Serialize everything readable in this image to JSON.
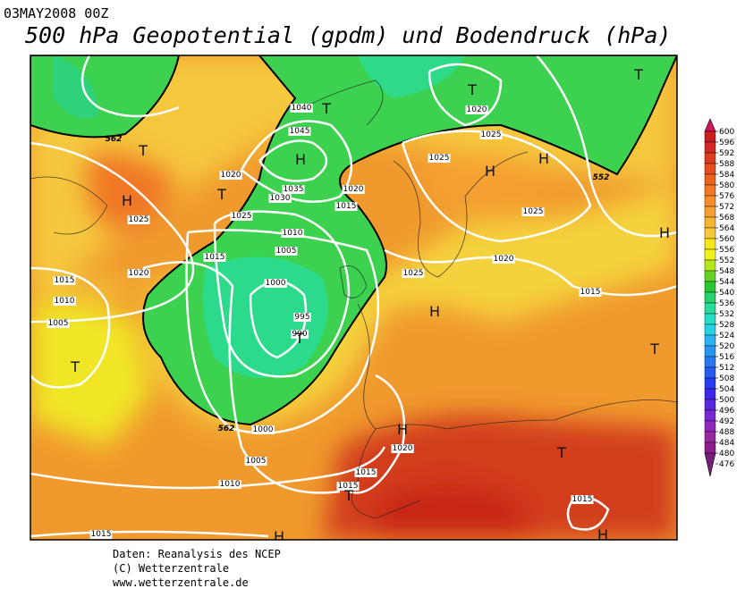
{
  "header": {
    "date": "03MAY2008 00Z",
    "title": "500 hPa Geopotential (gpdm) und Bodendruck (hPa)"
  },
  "isobar_labels": [
    "1040",
    "1045",
    "1035",
    "1030",
    "1020",
    "1025",
    "1025",
    "1020",
    "1015",
    "1010",
    "1005",
    "1000",
    "995",
    "990",
    "1015",
    "1020",
    "1015",
    "1010",
    "1005",
    "1020",
    "1025",
    "1025",
    "1025",
    "1020",
    "1025",
    "1015",
    "1020",
    "1015",
    "1015",
    "1015",
    "1000",
    "1005",
    "1010",
    "1015"
  ],
  "geopotential_labels": [
    "562",
    "562",
    "552"
  ],
  "pressure_centers": [
    "T",
    "H",
    "T",
    "H",
    "T",
    "T",
    "T",
    "H",
    "H",
    "H",
    "H",
    "T",
    "T",
    "T",
    "H",
    "T",
    "T",
    "H",
    "H"
  ],
  "colorbar": {
    "levels": [
      600,
      596,
      592,
      588,
      584,
      580,
      576,
      572,
      568,
      564,
      560,
      556,
      552,
      548,
      544,
      540,
      536,
      532,
      528,
      524,
      520,
      516,
      512,
      508,
      504,
      500,
      496,
      492,
      488,
      484,
      480,
      476
    ],
    "colors": [
      "#d2145a",
      "#c81e1e",
      "#d22828",
      "#dc3c1e",
      "#e6501e",
      "#eb641e",
      "#f07828",
      "#f58c28",
      "#f5a032",
      "#f5b432",
      "#f5c83c",
      "#f5e61e",
      "#f0f01e",
      "#b4e61e",
      "#64d228",
      "#28c832",
      "#28d26e",
      "#28dc9b",
      "#28dcc8",
      "#28d2e6",
      "#28b4f0",
      "#2896f0",
      "#2878f0",
      "#285af0",
      "#283cf0",
      "#3c28e6",
      "#5a28dc",
      "#7828d2",
      "#8c28be",
      "#9628a0",
      "#8c1e8c",
      "#781e78"
    ]
  },
  "footer": {
    "line1": "Daten: Reanalysis des NCEP",
    "line2": "(C) Wetterzentrale",
    "line3": "www.wetterzentrale.de"
  }
}
